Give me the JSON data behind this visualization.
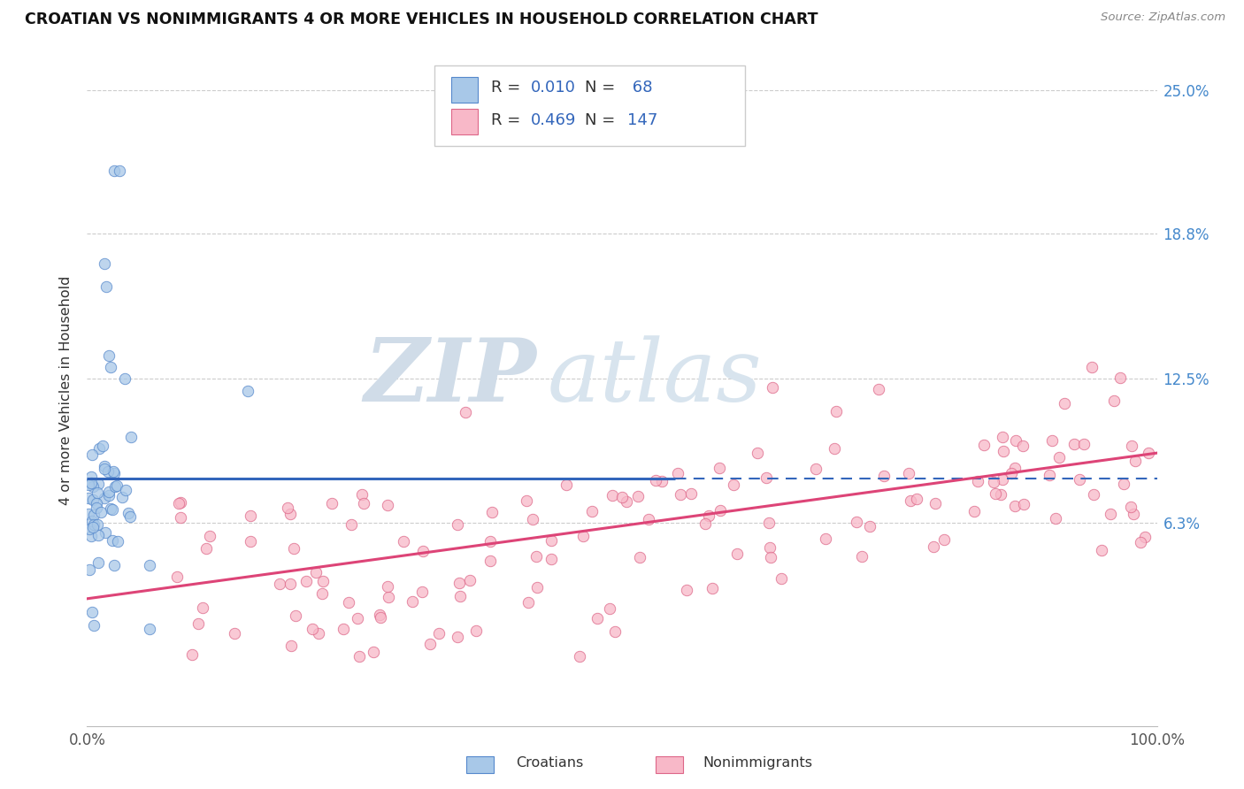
{
  "title": "CROATIAN VS NONIMMIGRANTS 4 OR MORE VEHICLES IN HOUSEHOLD CORRELATION CHART",
  "source": "Source: ZipAtlas.com",
  "ylabel": "4 or more Vehicles in Household",
  "ytick_labels": [
    "6.3%",
    "12.5%",
    "18.8%",
    "25.0%"
  ],
  "ytick_values": [
    0.063,
    0.125,
    0.188,
    0.25
  ],
  "xmin": 0.0,
  "xmax": 1.0,
  "ymin": -0.025,
  "ymax": 0.265,
  "croatian_R": 0.01,
  "croatian_N": 68,
  "nonimmigrant_R": 0.469,
  "nonimmigrant_N": 147,
  "legend_label1": "Croatians",
  "legend_label2": "Nonimmigrants",
  "croatian_color": "#A8C8E8",
  "croatian_edge_color": "#5588CC",
  "croatian_line_color": "#3366BB",
  "nonimmigrant_color": "#F8B8C8",
  "nonimmigrant_edge_color": "#DD6688",
  "nonimmigrant_line_color": "#DD4477",
  "watermark_zip": "ZIP",
  "watermark_atlas": "atlas",
  "watermark_color": "#D8E8F0",
  "background_color": "#FFFFFF",
  "grid_color": "#CCCCCC",
  "grid_style": "--",
  "blue_line_flat_y": 0.082,
  "blue_line_x_solid_end": 0.55,
  "pink_line_y0": 0.03,
  "pink_line_y1": 0.093
}
